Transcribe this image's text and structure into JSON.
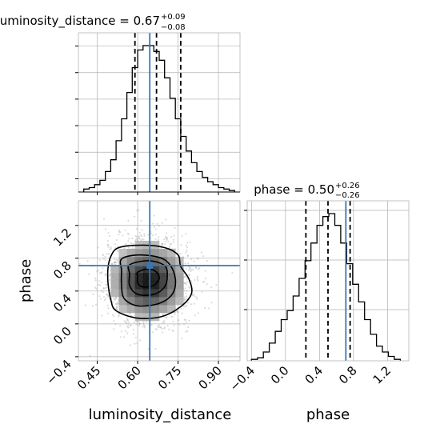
{
  "chart_data": {
    "type": "corner",
    "parameters": [
      "luminosity_distance",
      "phase"
    ],
    "truths": {
      "luminosity_distance": 0.645,
      "phase": 0.71
    },
    "colors": {
      "truth": "#3a76af",
      "hist": "#000000",
      "grid": "#b0b0b0",
      "scatter": "#9a9a9a"
    },
    "titles": {
      "luminosity_distance": {
        "text": "luminosity_distance = 0.67",
        "sup": "+0.09",
        "sub": "−0.08"
      },
      "phase": {
        "text": "phase = 0.50",
        "sup": "+0.26",
        "sub": "−0.26"
      }
    },
    "axis_labels": {
      "x1": "luminosity_distance",
      "x2": "phase",
      "y": "phase"
    },
    "ticks": {
      "luminosity_distance": [
        "0.45",
        "0.60",
        "0.75",
        "0.90"
      ],
      "phase_x": [
        "−0.4",
        "0.0",
        "0.4",
        "0.8",
        "1.2"
      ],
      "phase_y": [
        "−0.4",
        "0.0",
        "0.4",
        "0.8",
        "1.2"
      ]
    },
    "luminosity_distance_hist": {
      "range": [
        0.38,
        0.98
      ],
      "quantiles": [
        0.59,
        0.67,
        0.76
      ],
      "edges": [
        0.4,
        0.42,
        0.44,
        0.46,
        0.48,
        0.5,
        0.52,
        0.54,
        0.56,
        0.58,
        0.6,
        0.62,
        0.64,
        0.66,
        0.68,
        0.7,
        0.72,
        0.74,
        0.76,
        0.78,
        0.8,
        0.82,
        0.84,
        0.86,
        0.88,
        0.9,
        0.92,
        0.94,
        0.96
      ],
      "counts": [
        2,
        3,
        5,
        8,
        14,
        22,
        35,
        50,
        68,
        85,
        97,
        100,
        100,
        96,
        90,
        78,
        64,
        50,
        38,
        28,
        20,
        14,
        10,
        7,
        5,
        3,
        2,
        1
      ]
    },
    "phase_hist": {
      "range": [
        -0.45,
        1.45
      ],
      "quantiles": [
        0.24,
        0.5,
        0.76
      ],
      "edges": [
        -0.4,
        -0.33,
        -0.26,
        -0.19,
        -0.12,
        -0.05,
        0.02,
        0.09,
        0.16,
        0.23,
        0.3,
        0.37,
        0.44,
        0.51,
        0.58,
        0.65,
        0.72,
        0.79,
        0.86,
        0.93,
        1.0,
        1.07,
        1.14,
        1.21,
        1.28,
        1.35
      ],
      "counts": [
        1,
        2,
        6,
        12,
        20,
        28,
        34,
        44,
        56,
        68,
        80,
        92,
        98,
        100,
        92,
        80,
        66,
        52,
        40,
        28,
        18,
        10,
        6,
        3,
        1
      ]
    },
    "density_2d": {
      "xrange": [
        0.38,
        0.98
      ],
      "yrange": [
        -0.45,
        1.5
      ],
      "center": [
        0.64,
        0.52
      ],
      "sigma": [
        0.08,
        0.26
      ],
      "contours": [
        {
          "level": 0.118,
          "points": [
            [
              0.5,
              0.82
            ],
            [
              0.53,
              0.93
            ],
            [
              0.62,
              0.96
            ],
            [
              0.7,
              0.93
            ],
            [
              0.75,
              0.84
            ],
            [
              0.76,
              0.7
            ],
            [
              0.79,
              0.55
            ],
            [
              0.8,
              0.37
            ],
            [
              0.76,
              0.21
            ],
            [
              0.69,
              0.09
            ],
            [
              0.6,
              0.07
            ],
            [
              0.52,
              0.16
            ],
            [
              0.5,
              0.3
            ],
            [
              0.49,
              0.5
            ],
            [
              0.49,
              0.68
            ]
          ]
        },
        {
          "level": 0.393,
          "points": [
            [
              0.54,
              0.79
            ],
            [
              0.6,
              0.84
            ],
            [
              0.68,
              0.81
            ],
            [
              0.72,
              0.72
            ],
            [
              0.74,
              0.55
            ],
            [
              0.73,
              0.37
            ],
            [
              0.68,
              0.25
            ],
            [
              0.6,
              0.22
            ],
            [
              0.55,
              0.31
            ],
            [
              0.54,
              0.48
            ],
            [
              0.54,
              0.65
            ]
          ]
        },
        {
          "level": 0.675,
          "points": [
            [
              0.57,
              0.72
            ],
            [
              0.64,
              0.77
            ],
            [
              0.7,
              0.71
            ],
            [
              0.71,
              0.58
            ],
            [
              0.7,
              0.45
            ],
            [
              0.66,
              0.36
            ],
            [
              0.6,
              0.36
            ],
            [
              0.57,
              0.47
            ],
            [
              0.57,
              0.61
            ]
          ]
        },
        {
          "level": 0.865,
          "points": [
            [
              0.6,
              0.63
            ],
            [
              0.64,
              0.67
            ],
            [
              0.67,
              0.63
            ],
            [
              0.68,
              0.55
            ],
            [
              0.66,
              0.47
            ],
            [
              0.62,
              0.45
            ],
            [
              0.6,
              0.5
            ],
            [
              0.6,
              0.58
            ]
          ]
        }
      ]
    }
  }
}
